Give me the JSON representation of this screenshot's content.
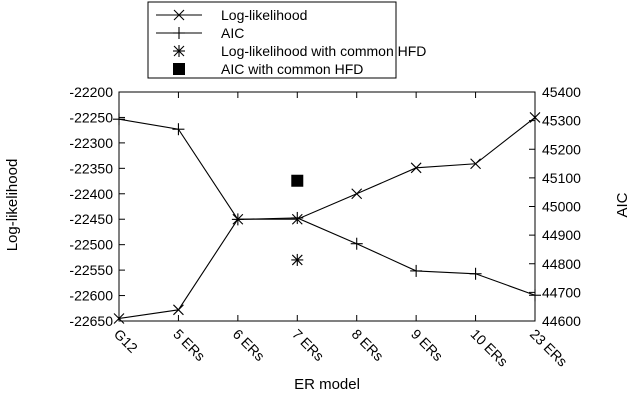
{
  "chart_data": {
    "type": "line",
    "title": "",
    "xlabel": "ER model",
    "ylabel_left": "Log-likelihood",
    "ylabel_right": "AIC",
    "categories": [
      "G12",
      "5 ERs",
      "6 ERs",
      "7 ERs",
      "8 ERs",
      "9 ERs",
      "10 ERs",
      "23 ERs"
    ],
    "ylim_left": [
      -22650,
      -22200
    ],
    "ylim_right": [
      44600,
      45400
    ],
    "yticks_left": [
      -22200,
      -22250,
      -22300,
      -22350,
      -22400,
      -22450,
      -22500,
      -22550,
      -22600,
      -22650
    ],
    "yticks_right": [
      45400,
      45300,
      45200,
      45100,
      45000,
      44900,
      44800,
      44700,
      44600
    ],
    "grid": false,
    "legend_position": "top-center",
    "series": [
      {
        "name": "Log-likelihood",
        "axis": "left",
        "marker": "x",
        "line": true,
        "values": [
          -22645,
          -22628,
          -22450,
          -22450,
          -22400,
          -22349,
          -22341,
          -22250
        ]
      },
      {
        "name": "AIC",
        "axis": "right",
        "marker": "plus",
        "line": true,
        "values": [
          45305,
          45270,
          44955,
          44960,
          44870,
          44775,
          44765,
          44690
        ]
      },
      {
        "name": "Log-likelihood with common HFD",
        "axis": "left",
        "marker": "asterisk",
        "line": false,
        "points": [
          {
            "category": "7 ERs",
            "value": -22530
          }
        ]
      },
      {
        "name": "AIC with common HFD",
        "axis": "right",
        "marker": "square",
        "line": false,
        "points": [
          {
            "category": "7 ERs",
            "value": 45090
          }
        ]
      }
    ]
  }
}
